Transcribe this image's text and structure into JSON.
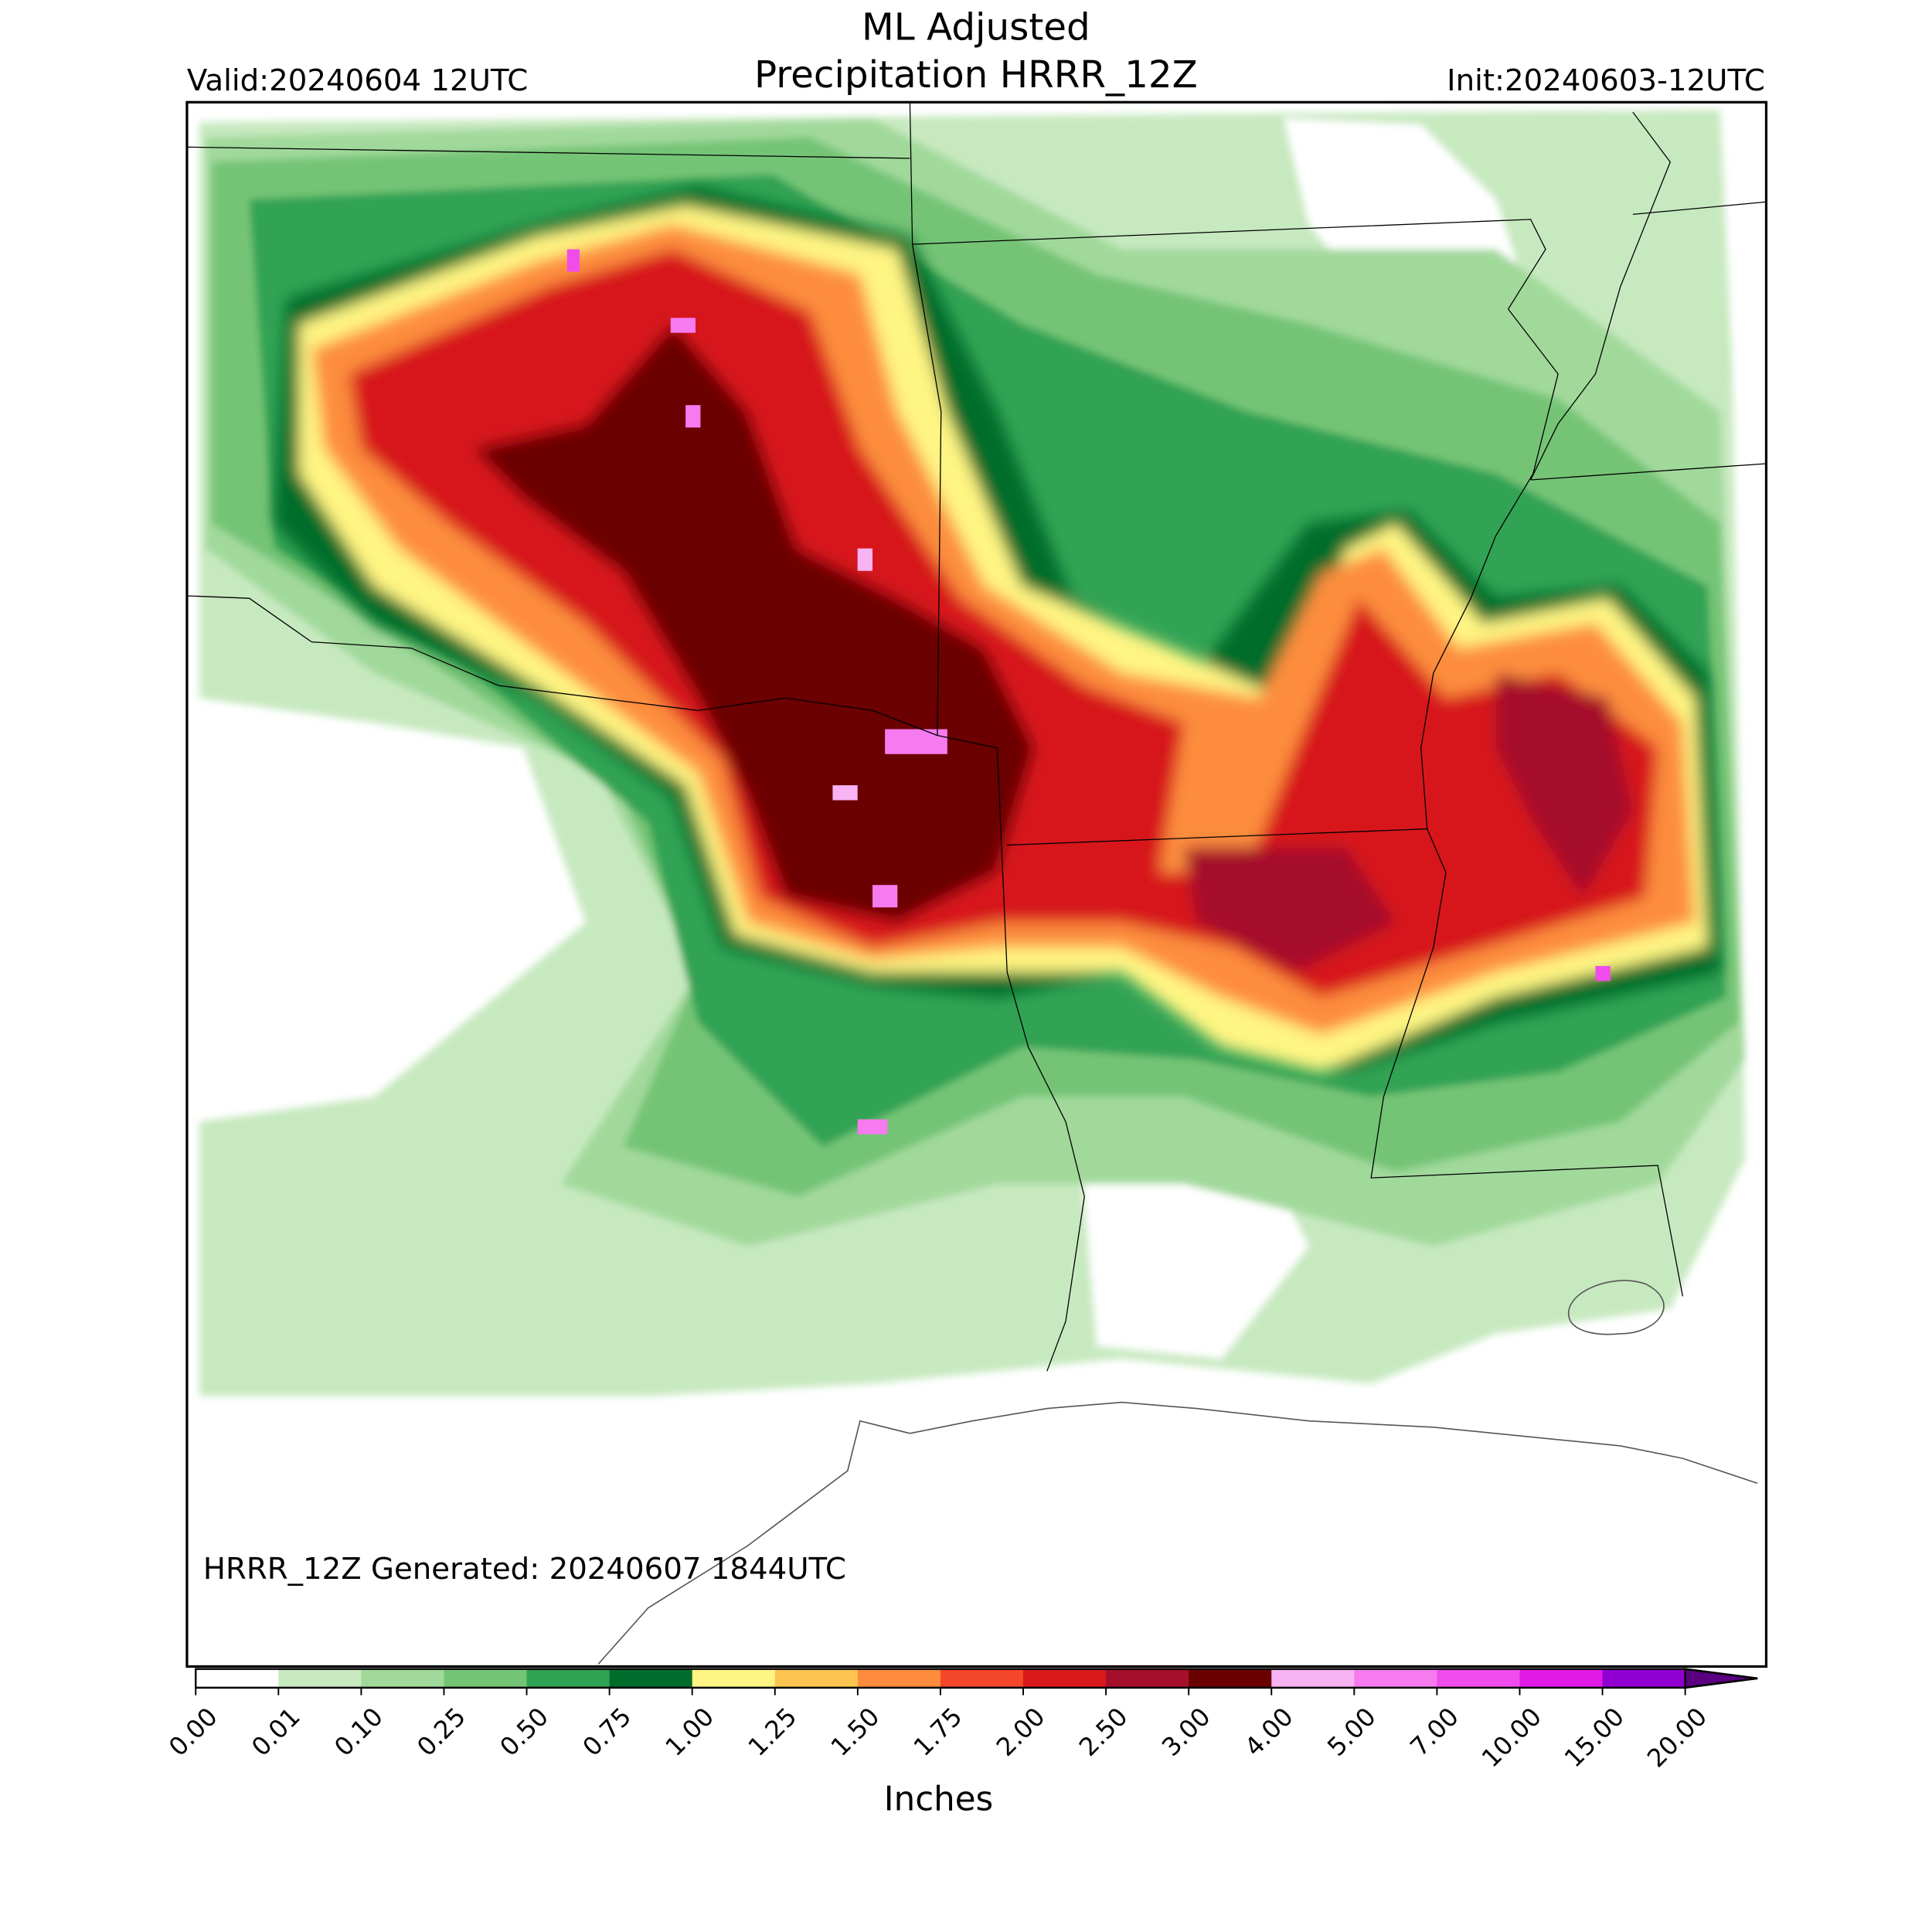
{
  "header": {
    "title_line1": "ML Adjusted",
    "title_line2": "Precipitation HRRR_12Z",
    "valid": "Valid:20240604 12UTC",
    "init": "Init:20240603-12UTC"
  },
  "map": {
    "note": "HRRR_12Z Generated: 20240607 1844UTC"
  },
  "colorbar": {
    "label": "Inches",
    "ticks": [
      {
        "value": 0,
        "label": "0.00"
      },
      {
        "value": 0.01,
        "label": "0.01"
      },
      {
        "value": 0.1,
        "label": "0.10"
      },
      {
        "value": 0.25,
        "label": "0.25"
      },
      {
        "value": 0.5,
        "label": "0.50"
      },
      {
        "value": 0.75,
        "label": "0.75"
      },
      {
        "value": 1,
        "label": "1.00"
      },
      {
        "value": 1.25,
        "label": "1.25"
      },
      {
        "value": 1.5,
        "label": "1.50"
      },
      {
        "value": 1.75,
        "label": "1.75"
      },
      {
        "value": 2,
        "label": "2.00"
      },
      {
        "value": 2.5,
        "label": "2.50"
      },
      {
        "value": 3,
        "label": "3.00"
      },
      {
        "value": 4,
        "label": "4.00"
      },
      {
        "value": 5,
        "label": "5.00"
      },
      {
        "value": 7,
        "label": "7.00"
      },
      {
        "value": 10,
        "label": "10.00"
      },
      {
        "value": 15,
        "label": "15.00"
      },
      {
        "value": 20,
        "label": "20.00"
      }
    ],
    "colors": [
      "#ffffff",
      "#c7e9c0",
      "#a1d99b",
      "#74c476",
      "#31a354",
      "#006d2c",
      "#fff583",
      "#fdc550",
      "#fd8d3c",
      "#f4472b",
      "#d7191c",
      "#a50f2c",
      "#6b0000",
      "#f8b3f5",
      "#f57bef",
      "#f04cec",
      "#e21ae6",
      "#9000d0"
    ],
    "extend_color": "#5a0080"
  }
}
